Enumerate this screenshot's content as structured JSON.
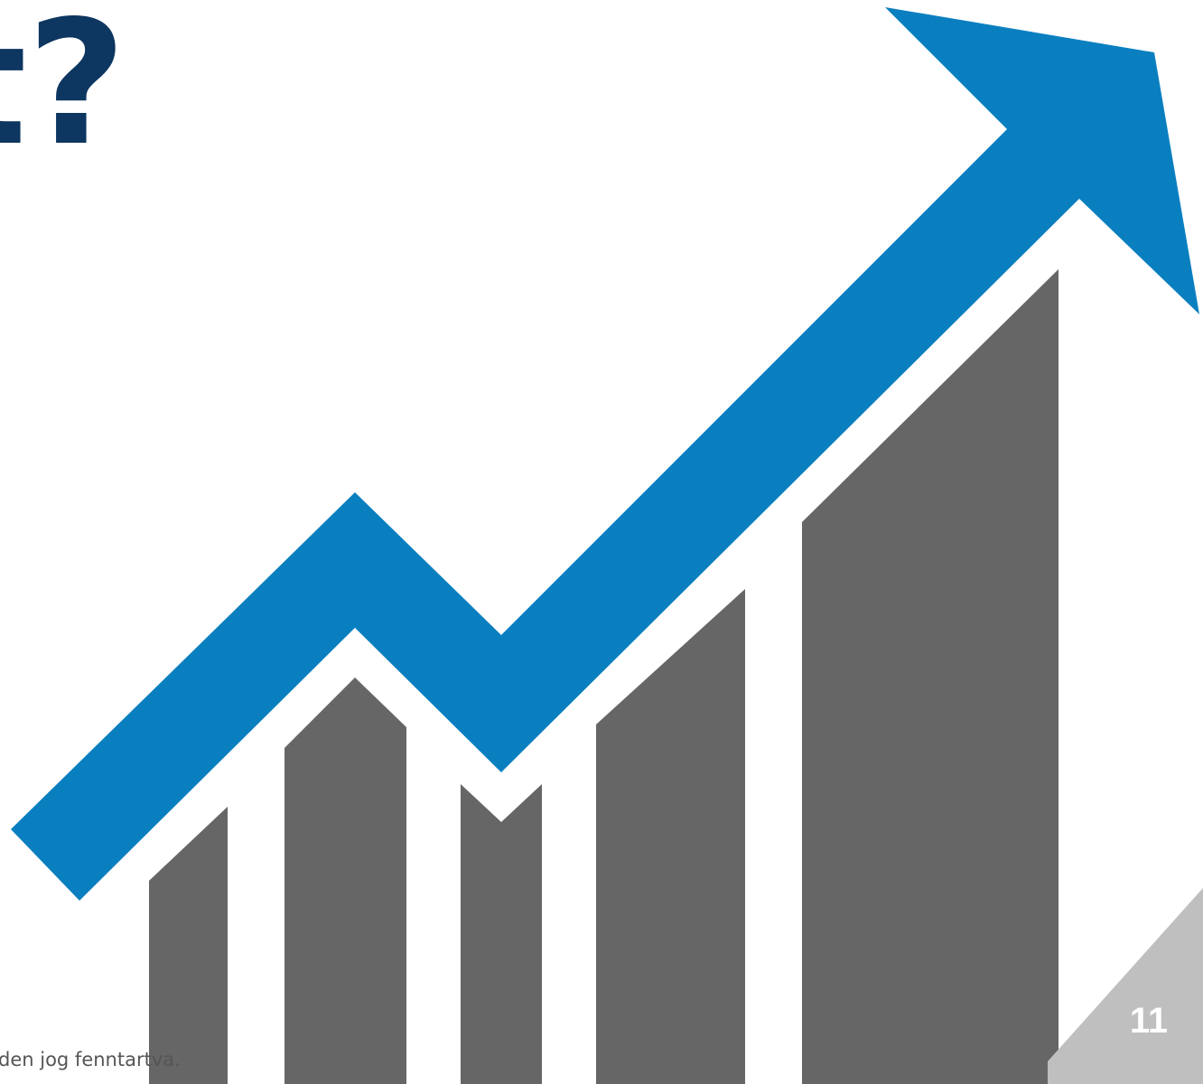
{
  "slide": {
    "title": "ot?",
    "footer": "den jog fenntartva.",
    "page_number": "11"
  }
}
